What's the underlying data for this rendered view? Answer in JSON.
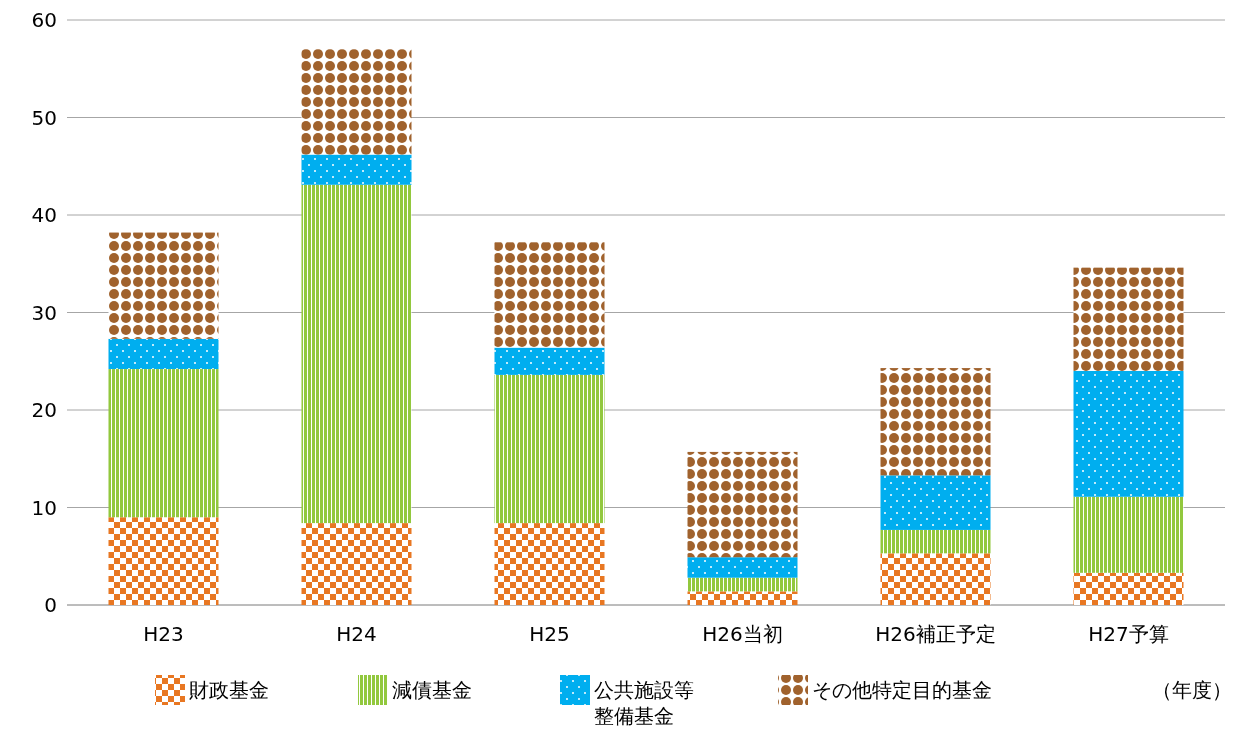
{
  "chart_data": {
    "type": "bar",
    "stacked": true,
    "categories": [
      "H23",
      "H24",
      "H25",
      "H26当初",
      "H26補正予定",
      "H27予算"
    ],
    "series": [
      {
        "name": "財政基金",
        "color": "#e87722",
        "values": [
          9.0,
          8.4,
          8.4,
          1.4,
          5.3,
          3.3
        ]
      },
      {
        "name": "減債基金",
        "color": "#92c83e",
        "values": [
          15.2,
          34.7,
          15.2,
          1.4,
          2.4,
          7.8
        ]
      },
      {
        "name": "公共施設等整備基金",
        "color": "#00aeef",
        "values": [
          3.1,
          3.1,
          2.8,
          2.1,
          5.6,
          12.9
        ]
      },
      {
        "name": "その他特定目的基金",
        "color": "#a0622d",
        "values": [
          10.9,
          10.8,
          10.8,
          10.8,
          11.0,
          10.6
        ]
      }
    ],
    "ylim": [
      0,
      60
    ],
    "yticks": [
      0,
      10,
      20,
      30,
      40,
      50,
      60
    ],
    "grid": "y",
    "legend": "bottom",
    "annotations": [
      "（年度）"
    ]
  }
}
